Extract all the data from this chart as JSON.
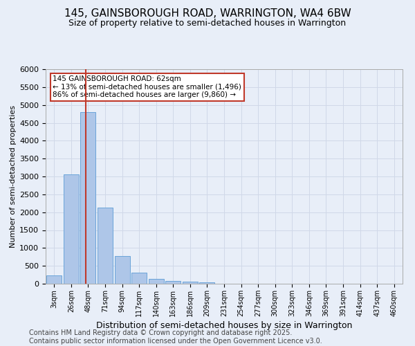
{
  "title": "145, GAINSBOROUGH ROAD, WARRINGTON, WA4 6BW",
  "subtitle": "Size of property relative to semi-detached houses in Warrington",
  "xlabel": "Distribution of semi-detached houses by size in Warrington",
  "ylabel": "Number of semi-detached properties",
  "categories": [
    "3sqm",
    "26sqm",
    "48sqm",
    "71sqm",
    "94sqm",
    "117sqm",
    "140sqm",
    "163sqm",
    "186sqm",
    "209sqm",
    "231sqm",
    "254sqm",
    "277sqm",
    "300sqm",
    "323sqm",
    "346sqm",
    "369sqm",
    "391sqm",
    "414sqm",
    "437sqm",
    "460sqm"
  ],
  "values": [
    240,
    3050,
    4800,
    2130,
    780,
    310,
    140,
    80,
    55,
    45,
    0,
    0,
    0,
    0,
    0,
    0,
    0,
    0,
    0,
    0,
    0
  ],
  "bar_color": "#aec6e8",
  "bar_edge_color": "#5b9bd5",
  "grid_color": "#d0d8e8",
  "background_color": "#e8eef8",
  "vline_color": "#c0392b",
  "annotation_text": "145 GAINSBOROUGH ROAD: 62sqm\n← 13% of semi-detached houses are smaller (1,496)\n86% of semi-detached houses are larger (9,860) →",
  "annotation_box_color": "#ffffff",
  "annotation_box_edge": "#c0392b",
  "ylim": [
    0,
    6000
  ],
  "yticks": [
    0,
    500,
    1000,
    1500,
    2000,
    2500,
    3000,
    3500,
    4000,
    4500,
    5000,
    5500,
    6000
  ],
  "footer": "Contains HM Land Registry data © Crown copyright and database right 2025.\nContains public sector information licensed under the Open Government Licence v3.0.",
  "title_fontsize": 11,
  "subtitle_fontsize": 9,
  "ylabel_fontsize": 8,
  "xlabel_fontsize": 9,
  "footer_fontsize": 7,
  "tick_fontsize": 7,
  "ytick_fontsize": 8
}
